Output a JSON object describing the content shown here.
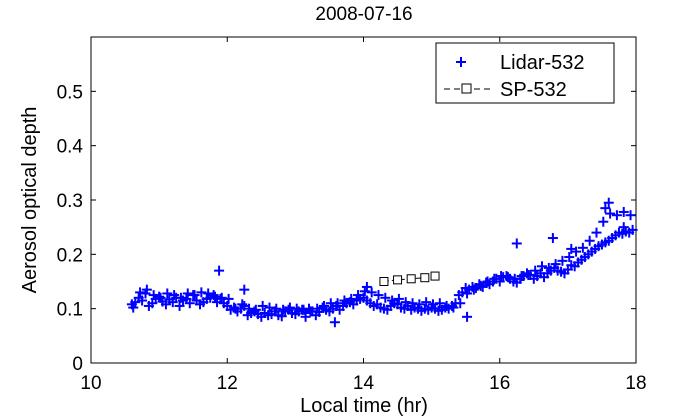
{
  "chart_data": {
    "type": "scatter",
    "title": "2008-07-16",
    "xlabel": "Local time (hr)",
    "ylabel": "Aerosol optical depth",
    "xlim": [
      10,
      18
    ],
    "ylim": [
      0,
      0.6
    ],
    "xticks": [
      10,
      12,
      14,
      16,
      18
    ],
    "yticks": [
      0,
      0.1,
      0.2,
      0.3,
      0.4,
      0.5
    ],
    "xtick_labels": [
      "10",
      "12",
      "14",
      "16",
      "18"
    ],
    "ytick_labels": [
      "0",
      "0.1",
      "0.2",
      "0.3",
      "0.4",
      "0.5"
    ],
    "grid": false,
    "legend_position": "top-right",
    "legend": [
      {
        "label": "Lidar-532",
        "marker": "plus",
        "color": "#0000ff"
      },
      {
        "label": "SP-532",
        "marker": "square-dashed-line",
        "color": "#000000"
      }
    ],
    "series": [
      {
        "name": "Lidar-532",
        "marker": "plus",
        "color": "#0000ff",
        "x": [
          10.6,
          10.65,
          10.7,
          10.75,
          10.8,
          10.85,
          10.9,
          10.95,
          11.0,
          11.05,
          11.1,
          11.15,
          11.2,
          11.25,
          11.3,
          11.35,
          11.4,
          11.45,
          11.5,
          11.55,
          11.6,
          11.65,
          11.7,
          11.75,
          11.8,
          11.85,
          11.9,
          11.95,
          12.0,
          12.05,
          12.1,
          12.15,
          12.2,
          12.25,
          12.3,
          12.35,
          12.4,
          12.45,
          12.5,
          12.55,
          12.6,
          12.65,
          12.7,
          12.75,
          12.8,
          12.85,
          12.9,
          12.95,
          13.0,
          13.05,
          13.1,
          13.15,
          13.2,
          13.25,
          13.3,
          13.35,
          13.4,
          13.45,
          13.5,
          13.55,
          13.6,
          13.65,
          13.7,
          13.75,
          13.8,
          13.85,
          13.9,
          13.95,
          14.0,
          14.05,
          14.1,
          14.15,
          14.2,
          14.25,
          14.3,
          14.35,
          14.4,
          14.45,
          14.5,
          14.55,
          14.6,
          14.65,
          14.7,
          14.75,
          14.8,
          14.85,
          14.9,
          14.95,
          15.0,
          15.05,
          15.1,
          15.15,
          15.2,
          15.25,
          15.3,
          15.35,
          15.4,
          15.45,
          15.5,
          15.55,
          15.6,
          15.65,
          15.7,
          15.75,
          15.8,
          15.85,
          15.9,
          15.95,
          16.0,
          16.05,
          16.1,
          16.15,
          16.2,
          16.25,
          16.3,
          16.35,
          16.4,
          16.45,
          16.5,
          16.55,
          16.6,
          16.65,
          16.7,
          16.75,
          16.8,
          16.85,
          16.9,
          16.95,
          17.0,
          17.05,
          17.1,
          17.15,
          17.2,
          17.25,
          17.3,
          17.35,
          17.4,
          17.45,
          17.5,
          17.55,
          17.6,
          17.65,
          17.7,
          17.75,
          17.8,
          17.85,
          17.9,
          17.95,
          10.62,
          10.72,
          10.82,
          10.92,
          11.02,
          11.12,
          11.22,
          11.32,
          11.42,
          11.52,
          11.62,
          11.72,
          11.82,
          11.92,
          12.02,
          12.12,
          12.22,
          12.32,
          12.42,
          12.52,
          12.62,
          12.72,
          12.82,
          12.92,
          13.02,
          13.12,
          13.22,
          13.32,
          13.42,
          13.52,
          13.62,
          13.72,
          13.82,
          13.92,
          14.02,
          14.12,
          14.22,
          14.32,
          14.42,
          14.52,
          14.62,
          14.72,
          14.82,
          14.92,
          15.02,
          15.12,
          15.22,
          15.32,
          15.42,
          15.52,
          15.62,
          15.72,
          15.82,
          15.92,
          16.02,
          16.12,
          16.22,
          16.32,
          16.42,
          16.52,
          16.62,
          16.72,
          16.82,
          16.92,
          17.02,
          17.12,
          17.22,
          17.32,
          17.42,
          17.52,
          17.62,
          17.72,
          17.82,
          17.92,
          11.88,
          12.25,
          13.15,
          13.58,
          14.05,
          15.52,
          16.25,
          16.78,
          17.05,
          17.55,
          17.6,
          17.82
        ],
        "y": [
          0.108,
          0.112,
          0.12,
          0.115,
          0.128,
          0.105,
          0.11,
          0.118,
          0.122,
          0.113,
          0.108,
          0.117,
          0.112,
          0.12,
          0.105,
          0.115,
          0.118,
          0.11,
          0.125,
          0.115,
          0.108,
          0.112,
          0.118,
          0.12,
          0.125,
          0.112,
          0.118,
          0.11,
          0.105,
          0.098,
          0.102,
          0.095,
          0.1,
          0.105,
          0.088,
          0.092,
          0.095,
          0.09,
          0.085,
          0.092,
          0.088,
          0.09,
          0.095,
          0.088,
          0.086,
          0.095,
          0.098,
          0.092,
          0.09,
          0.095,
          0.098,
          0.092,
          0.1,
          0.095,
          0.088,
          0.094,
          0.102,
          0.098,
          0.095,
          0.1,
          0.105,
          0.098,
          0.105,
          0.11,
          0.112,
          0.108,
          0.115,
          0.118,
          0.12,
          0.115,
          0.11,
          0.105,
          0.108,
          0.102,
          0.1,
          0.098,
          0.105,
          0.11,
          0.108,
          0.102,
          0.1,
          0.105,
          0.098,
          0.102,
          0.1,
          0.096,
          0.1,
          0.098,
          0.102,
          0.1,
          0.096,
          0.098,
          0.102,
          0.1,
          0.105,
          0.11,
          0.125,
          0.13,
          0.138,
          0.135,
          0.14,
          0.138,
          0.145,
          0.14,
          0.148,
          0.145,
          0.15,
          0.155,
          0.15,
          0.158,
          0.16,
          0.155,
          0.15,
          0.148,
          0.155,
          0.16,
          0.165,
          0.162,
          0.155,
          0.16,
          0.165,
          0.158,
          0.165,
          0.17,
          0.175,
          0.17,
          0.168,
          0.165,
          0.172,
          0.18,
          0.178,
          0.185,
          0.19,
          0.195,
          0.2,
          0.205,
          0.21,
          0.215,
          0.218,
          0.222,
          0.225,
          0.23,
          0.235,
          0.24,
          0.238,
          0.242,
          0.24,
          0.245,
          0.102,
          0.13,
          0.135,
          0.125,
          0.12,
          0.128,
          0.125,
          0.12,
          0.128,
          0.125,
          0.13,
          0.128,
          0.122,
          0.12,
          0.118,
          0.1,
          0.108,
          0.1,
          0.098,
          0.105,
          0.102,
          0.1,
          0.098,
          0.102,
          0.1,
          0.098,
          0.095,
          0.1,
          0.105,
          0.11,
          0.11,
          0.115,
          0.118,
          0.125,
          0.132,
          0.13,
          0.125,
          0.12,
          0.115,
          0.118,
          0.112,
          0.11,
          0.108,
          0.112,
          0.108,
          0.11,
          0.105,
          0.102,
          0.11,
          0.128,
          0.135,
          0.142,
          0.15,
          0.155,
          0.16,
          0.158,
          0.155,
          0.16,
          0.162,
          0.17,
          0.178,
          0.175,
          0.182,
          0.188,
          0.195,
          0.205,
          0.212,
          0.225,
          0.24,
          0.26,
          0.275,
          0.272,
          0.278,
          0.272,
          0.17,
          0.135,
          0.085,
          0.075,
          0.14,
          0.085,
          0.22,
          0.23,
          0.21,
          0.285,
          0.295,
          0.25
        ]
      },
      {
        "name": "SP-532",
        "marker": "square",
        "line": "dashed",
        "color": "#000000",
        "x": [
          14.3,
          14.5,
          14.7,
          14.9,
          15.05
        ],
        "y": [
          0.15,
          0.153,
          0.155,
          0.157,
          0.16
        ]
      }
    ]
  }
}
